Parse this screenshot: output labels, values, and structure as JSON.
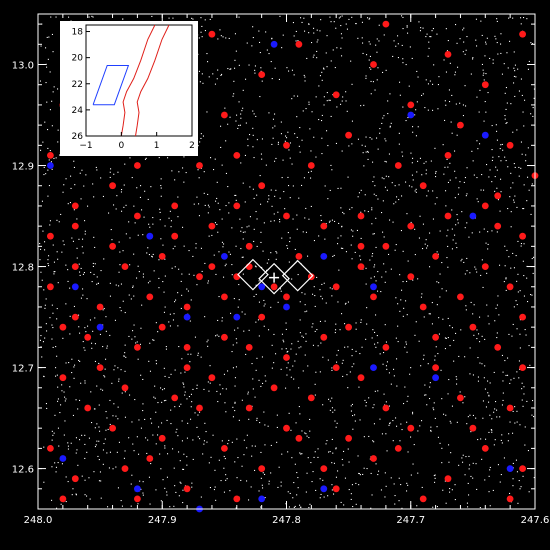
{
  "chart_data": [
    {
      "id": "main-field",
      "type": "scatter",
      "title": "",
      "xlabel": "",
      "ylabel": "",
      "x_reversed": true,
      "xlim": [
        248.0,
        247.6
      ],
      "ylim": [
        12.56,
        13.05
      ],
      "xticks": [
        248.0,
        247.9,
        247.8,
        247.7,
        247.6
      ],
      "xtick_labels": [
        "248.0",
        "247.9",
        "247.8",
        "247.7",
        "247.6"
      ],
      "yticks": [
        12.6,
        12.7,
        12.8,
        12.9,
        13.0
      ],
      "ytick_labels": [
        "12.6",
        "12.7",
        "12.8",
        "12.9",
        "13.0"
      ],
      "grid": false,
      "background": "#000000",
      "colors": {
        "red_points": "#ff1a1a",
        "blue_points": "#1a1aff",
        "white_points": "#ffffff",
        "markers": "#ffffff"
      },
      "series": [
        {
          "marker": "filled-circle",
          "color": "#ff1a1a",
          "points": [
            [
              247.84,
              12.79
            ],
            [
              247.85,
              12.77
            ],
            [
              247.83,
              12.8
            ],
            [
              247.81,
              12.78
            ],
            [
              247.86,
              12.8
            ],
            [
              247.88,
              12.76
            ],
            [
              247.82,
              12.75
            ],
            [
              247.79,
              12.81
            ],
            [
              247.87,
              12.79
            ],
            [
              247.8,
              12.77
            ],
            [
              247.9,
              12.81
            ],
            [
              247.78,
              12.79
            ],
            [
              247.91,
              12.77
            ],
            [
              247.76,
              12.78
            ],
            [
              247.74,
              12.8
            ],
            [
              247.93,
              12.8
            ],
            [
              247.95,
              12.76
            ],
            [
              247.72,
              12.82
            ],
            [
              247.7,
              12.79
            ],
            [
              247.68,
              12.81
            ],
            [
              247.85,
              12.73
            ],
            [
              247.83,
              12.72
            ],
            [
              247.88,
              12.7
            ],
            [
              247.9,
              12.74
            ],
            [
              247.8,
              12.71
            ],
            [
              247.77,
              12.73
            ],
            [
              247.75,
              12.74
            ],
            [
              247.92,
              12.72
            ],
            [
              247.96,
              12.73
            ],
            [
              247.98,
              12.74
            ],
            [
              247.86,
              12.84
            ],
            [
              247.84,
              12.86
            ],
            [
              247.8,
              12.85
            ],
            [
              247.82,
              12.88
            ],
            [
              247.89,
              12.86
            ],
            [
              247.92,
              12.85
            ],
            [
              247.77,
              12.84
            ],
            [
              247.74,
              12.85
            ],
            [
              247.7,
              12.84
            ],
            [
              247.67,
              12.85
            ],
            [
              247.97,
              12.8
            ],
            [
              247.99,
              12.78
            ],
            [
              247.94,
              12.82
            ],
            [
              247.64,
              12.8
            ],
            [
              247.62,
              12.78
            ],
            [
              247.66,
              12.77
            ],
            [
              247.69,
              12.76
            ],
            [
              247.73,
              12.77
            ],
            [
              247.65,
              12.74
            ],
            [
              247.63,
              12.72
            ],
            [
              247.98,
              12.96
            ],
            [
              247.96,
              12.99
            ],
            [
              247.93,
              13.02
            ],
            [
              247.9,
              12.97
            ],
            [
              247.88,
              13.0
            ],
            [
              247.85,
              12.95
            ],
            [
              247.82,
              12.99
            ],
            [
              247.79,
              13.02
            ],
            [
              247.76,
              12.97
            ],
            [
              247.73,
              13.0
            ],
            [
              247.7,
              12.96
            ],
            [
              247.67,
              13.01
            ],
            [
              247.64,
              12.98
            ],
            [
              247.61,
              13.03
            ],
            [
              247.86,
              13.03
            ],
            [
              247.72,
              13.04
            ],
            [
              247.66,
              12.94
            ],
            [
              247.62,
              12.92
            ],
            [
              247.75,
              12.93
            ],
            [
              247.8,
              12.92
            ],
            [
              247.91,
              12.92
            ],
            [
              247.95,
              12.93
            ],
            [
              247.99,
              12.91
            ],
            [
              247.87,
              12.9
            ],
            [
              247.71,
              12.9
            ],
            [
              247.6,
              12.89
            ],
            [
              247.63,
              12.87
            ],
            [
              247.69,
              12.88
            ],
            [
              247.94,
              12.88
            ],
            [
              247.97,
              12.86
            ],
            [
              247.99,
              12.62
            ],
            [
              247.97,
              12.59
            ],
            [
              247.94,
              12.64
            ],
            [
              247.91,
              12.61
            ],
            [
              247.88,
              12.58
            ],
            [
              247.85,
              12.62
            ],
            [
              247.82,
              12.6
            ],
            [
              247.79,
              12.63
            ],
            [
              247.76,
              12.58
            ],
            [
              247.73,
              12.61
            ],
            [
              247.7,
              12.64
            ],
            [
              247.67,
              12.59
            ],
            [
              247.64,
              12.62
            ],
            [
              247.61,
              12.6
            ],
            [
              247.96,
              12.66
            ],
            [
              247.89,
              12.67
            ],
            [
              247.83,
              12.66
            ],
            [
              247.78,
              12.67
            ],
            [
              247.72,
              12.66
            ],
            [
              247.66,
              12.67
            ],
            [
              247.62,
              12.66
            ],
            [
              247.98,
              12.69
            ],
            [
              247.93,
              12.68
            ],
            [
              247.86,
              12.69
            ],
            [
              247.81,
              12.68
            ],
            [
              247.74,
              12.69
            ],
            [
              247.68,
              12.7
            ],
            [
              247.61,
              12.7
            ],
            [
              247.9,
              12.63
            ],
            [
              247.75,
              12.63
            ],
            [
              247.99,
              12.83
            ],
            [
              247.97,
              12.84
            ],
            [
              247.61,
              12.83
            ],
            [
              247.63,
              12.84
            ],
            [
              247.92,
              12.9
            ],
            [
              247.84,
              12.91
            ],
            [
              247.78,
              12.9
            ],
            [
              247.67,
              12.91
            ],
            [
              247.89,
              12.83
            ],
            [
              247.74,
              12.82
            ],
            [
              247.95,
              12.7
            ],
            [
              247.87,
              12.66
            ],
            [
              247.8,
              12.64
            ],
            [
              247.71,
              12.62
            ],
            [
              247.65,
              12.64
            ],
            [
              247.93,
              12.6
            ],
            [
              247.84,
              12.57
            ],
            [
              247.77,
              12.6
            ],
            [
              247.69,
              12.57
            ],
            [
              247.62,
              12.57
            ],
            [
              247.98,
              12.57
            ],
            [
              247.92,
              12.57
            ],
            [
              247.88,
              12.72
            ],
            [
              247.72,
              12.72
            ],
            [
              247.76,
              12.7
            ],
            [
              247.83,
              12.82
            ],
            [
              247.68,
              12.73
            ],
            [
              247.97,
              12.75
            ],
            [
              247.61,
              12.75
            ],
            [
              247.64,
              12.86
            ]
          ]
        },
        {
          "marker": "filled-circle",
          "color": "#1a1aff",
          "points": [
            [
              247.99,
              12.9
            ],
            [
              247.94,
              13.01
            ],
            [
              247.81,
              13.02
            ],
            [
              247.7,
              12.95
            ],
            [
              247.64,
              12.93
            ],
            [
              247.91,
              12.83
            ],
            [
              247.85,
              12.81
            ],
            [
              247.8,
              12.76
            ],
            [
              247.82,
              12.78
            ],
            [
              247.84,
              12.75
            ],
            [
              247.77,
              12.81
            ],
            [
              247.73,
              12.78
            ],
            [
              247.88,
              12.75
            ],
            [
              247.95,
              12.74
            ],
            [
              247.97,
              12.78
            ],
            [
              247.68,
              12.69
            ],
            [
              247.73,
              12.7
            ],
            [
              247.62,
              12.6
            ],
            [
              247.77,
              12.58
            ],
            [
              247.98,
              12.61
            ],
            [
              247.92,
              12.58
            ],
            [
              247.87,
              12.56
            ],
            [
              247.82,
              12.57
            ],
            [
              247.65,
              12.85
            ]
          ]
        }
      ],
      "markers": [
        {
          "shape": "diamond",
          "x": 247.827,
          "y": 12.792
        },
        {
          "shape": "diamond",
          "x": 247.81,
          "y": 12.788
        },
        {
          "shape": "diamond",
          "x": 247.791,
          "y": 12.791
        },
        {
          "shape": "plus",
          "x": 247.81,
          "y": 12.789
        }
      ]
    },
    {
      "id": "inset-cmd",
      "type": "line",
      "title": "",
      "xlabel": "",
      "ylabel": "",
      "xlim": [
        -1,
        2
      ],
      "ylim": [
        26,
        17.5
      ],
      "y_reversed": true,
      "xticks": [
        -1,
        0,
        1,
        2
      ],
      "xtick_labels": [
        "−1",
        "0",
        "1",
        "2"
      ],
      "yticks": [
        18,
        20,
        22,
        24,
        26
      ],
      "ytick_labels": [
        "18",
        "20",
        "22",
        "24",
        "26"
      ],
      "background": "#ffffff",
      "series": [
        {
          "color": "#2040ff",
          "points": [
            [
              -0.8,
              23.6
            ],
            [
              -0.4,
              20.6
            ],
            [
              0.2,
              20.6
            ],
            [
              -0.2,
              23.6
            ],
            [
              -0.8,
              23.6
            ]
          ]
        },
        {
          "color": "#e0201a",
          "points": [
            [
              0.95,
              17.5
            ],
            [
              0.75,
              18.6
            ],
            [
              0.55,
              20.2
            ],
            [
              0.35,
              21.6
            ],
            [
              0.15,
              22.6
            ],
            [
              0.05,
              23.4
            ],
            [
              0.1,
              24.2
            ],
            [
              0.05,
              25.2
            ],
            [
              0.0,
              26.0
            ]
          ]
        },
        {
          "color": "#e0201a",
          "points": [
            [
              1.35,
              17.5
            ],
            [
              1.15,
              18.6
            ],
            [
              0.95,
              20.2
            ],
            [
              0.75,
              21.6
            ],
            [
              0.55,
              22.6
            ],
            [
              0.45,
              23.4
            ],
            [
              0.5,
              24.2
            ],
            [
              0.45,
              25.2
            ],
            [
              0.4,
              26.0
            ]
          ]
        }
      ]
    }
  ]
}
